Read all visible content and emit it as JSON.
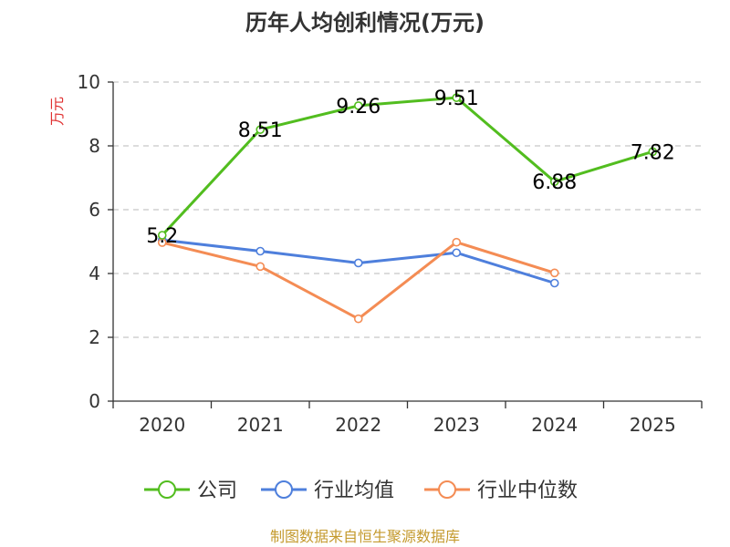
{
  "source_text": "制图数据来自恒生聚源数据库",
  "colors": {
    "company": "#52bd1f",
    "industry_avg": "#4e7fdc",
    "industry_median": "#f48c54",
    "ylabel": "#e03030",
    "source": "#c49a2e",
    "grid": "#c8c8c8",
    "axis": "#333333"
  },
  "chart_data": {
    "type": "line",
    "title": "历年人均创利情况(万元)",
    "xlabel": "",
    "ylabel": "万元",
    "categories": [
      "2020",
      "2021",
      "2022",
      "2023",
      "2024",
      "2025"
    ],
    "ylim": [
      0,
      10
    ],
    "yticks": [
      0,
      2,
      4,
      6,
      8,
      10
    ],
    "grid": "horizontal-dashed",
    "legend_position": "bottom",
    "series": [
      {
        "name": "公司",
        "color_key": "company",
        "values": [
          5.2,
          8.51,
          9.26,
          9.51,
          6.88,
          7.82
        ],
        "labels": [
          "5.2",
          "8.51",
          "9.26",
          "9.51",
          "6.88",
          "7.82"
        ]
      },
      {
        "name": "行业均值",
        "color_key": "industry_avg",
        "values": [
          5.05,
          4.7,
          4.33,
          4.65,
          3.7,
          null
        ]
      },
      {
        "name": "行业中位数",
        "color_key": "industry_median",
        "values": [
          4.97,
          4.22,
          2.58,
          4.98,
          4.02,
          null
        ]
      }
    ]
  }
}
